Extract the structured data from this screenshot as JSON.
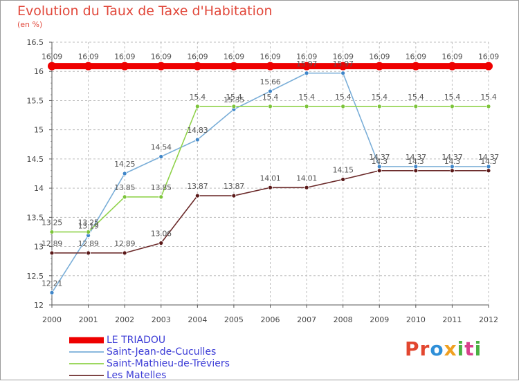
{
  "title": "Evolution du Taux de Taxe d'Habitation",
  "subtitle": "(en %)",
  "brand": {
    "text": "Proxiti",
    "letter_colors": [
      "#e2462f",
      "#e2462f",
      "#2f8fd8",
      "#f0a020",
      "#4bb043",
      "#d8408c",
      "#4bb043"
    ]
  },
  "chart_data": {
    "type": "line",
    "x": [
      "2000",
      "2001",
      "2002",
      "2003",
      "2004",
      "2005",
      "2006",
      "2007",
      "2008",
      "2009",
      "2010",
      "2011",
      "2012"
    ],
    "ylim": [
      12,
      16.5
    ],
    "yticks": [
      "12",
      "12.5",
      "13",
      "13.5",
      "14",
      "14.5",
      "15",
      "15.5",
      "16",
      "16.5"
    ],
    "grid": true,
    "legend_position": "bottom-left",
    "series": [
      {
        "name": "LE TRIADOU",
        "color": "#ee0000",
        "point_color": "#ee0000",
        "thick": true,
        "values": [
          16.09,
          16.09,
          16.09,
          16.09,
          16.09,
          16.09,
          16.09,
          16.09,
          16.09,
          16.09,
          16.09,
          16.09,
          16.09
        ],
        "labels": [
          "16.09",
          "16.09",
          "16.09",
          "16.09",
          "16.09",
          "16.09",
          "16.09",
          "16.09",
          "16.09",
          "16.09",
          "16.09",
          "16.09",
          "16.09"
        ]
      },
      {
        "name": "Saint-Jean-de-Cuculles",
        "color": "#7aaed8",
        "point_color": "#3f86c9",
        "thick": false,
        "values": [
          12.21,
          13.19,
          14.25,
          14.54,
          14.83,
          15.35,
          15.66,
          15.97,
          15.97,
          14.37,
          14.37,
          14.37,
          14.37
        ],
        "labels": [
          "12.21",
          "13.19",
          "14.25",
          "14.54",
          "14.83",
          "15.35",
          "15.66",
          "15.97",
          "15.97",
          "14.37",
          "14.37",
          "14.37",
          "14.37"
        ]
      },
      {
        "name": "Saint-Mathieu-de-Tréviers",
        "color": "#8fd24a",
        "point_color": "#7cc43a",
        "thick": false,
        "values": [
          13.25,
          13.25,
          13.85,
          13.85,
          15.4,
          15.4,
          15.4,
          15.4,
          15.4,
          15.4,
          15.4,
          15.4,
          15.4
        ],
        "labels": [
          "13.25",
          "13.25",
          "13.85",
          "13.85",
          "15.4",
          "15.4",
          "15.4",
          "15.4",
          "15.4",
          "15.4",
          "15.4",
          "15.4",
          "15.4"
        ]
      },
      {
        "name": "Les Matelles",
        "color": "#6b2a2a",
        "point_color": "#5a1818",
        "thick": false,
        "values": [
          12.89,
          12.89,
          12.89,
          13.06,
          13.87,
          13.87,
          14.01,
          14.01,
          14.15,
          14.3,
          14.3,
          14.3,
          14.3
        ],
        "labels": [
          "12.89",
          "12.89",
          "12.89",
          "13.06",
          "13.87",
          "13.87",
          "14.01",
          "14.01",
          "14.15",
          "14.3",
          "14.3",
          "14.3",
          "14.3"
        ]
      }
    ]
  }
}
